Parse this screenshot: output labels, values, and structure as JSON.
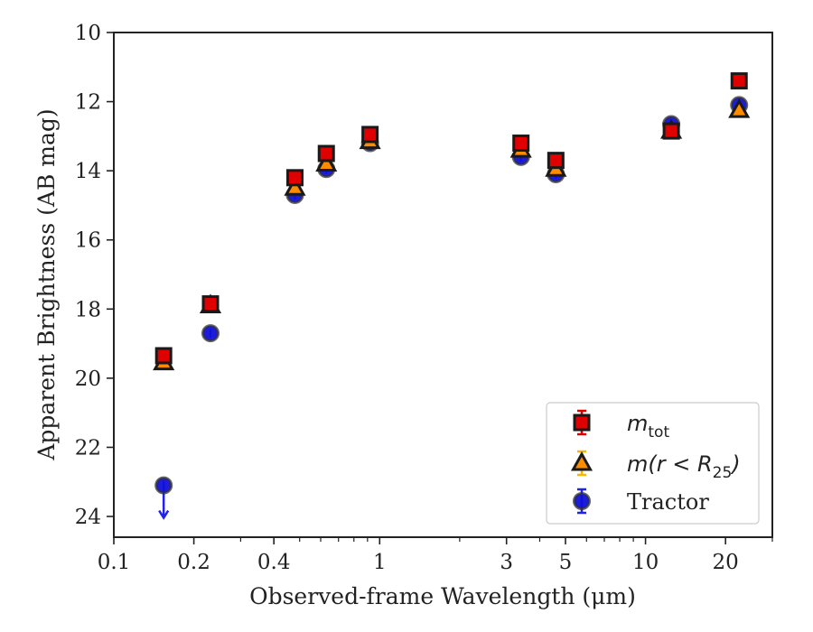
{
  "chart_data": {
    "type": "scatter",
    "xlabel": "Observed-frame Wavelength (μm)",
    "ylabel": "Apparent Brightness (AB mag)",
    "x_scale": "log",
    "xlim": [
      0.1,
      30
    ],
    "ylim": [
      24.6,
      10
    ],
    "y_inverted": true,
    "grid": false,
    "legend_position": "lower-right",
    "x_ticks": [
      {
        "value": 0.1,
        "label": "0.1"
      },
      {
        "value": 0.2,
        "label": "0.2"
      },
      {
        "value": 0.4,
        "label": "0.4"
      },
      {
        "value": 1,
        "label": "1"
      },
      {
        "value": 3,
        "label": "3"
      },
      {
        "value": 5,
        "label": "5"
      },
      {
        "value": 10,
        "label": "10"
      },
      {
        "value": 20,
        "label": "20"
      }
    ],
    "x_minor_ticks": [
      0.3,
      0.5,
      0.6,
      0.7,
      0.8,
      0.9,
      2,
      4,
      6,
      7,
      8,
      9,
      30
    ],
    "y_ticks": [
      {
        "value": 10,
        "label": "10"
      },
      {
        "value": 12,
        "label": "12"
      },
      {
        "value": 14,
        "label": "14"
      },
      {
        "value": 16,
        "label": "16"
      },
      {
        "value": 18,
        "label": "18"
      },
      {
        "value": 20,
        "label": "20"
      },
      {
        "value": 22,
        "label": "22"
      },
      {
        "value": 24,
        "label": "24"
      }
    ],
    "series": [
      {
        "name": "m_tot",
        "legend_label": {
          "base": "m",
          "sub": "tot"
        },
        "marker": "square",
        "color": "#e00000",
        "edge_color": "#1a1a1a",
        "errbar_color": "#e00000",
        "points": [
          {
            "x": 0.154,
            "y": 19.35
          },
          {
            "x": 0.231,
            "y": 17.85
          },
          {
            "x": 0.48,
            "y": 14.2
          },
          {
            "x": 0.63,
            "y": 13.5
          },
          {
            "x": 0.92,
            "y": 12.95
          },
          {
            "x": 3.4,
            "y": 13.2
          },
          {
            "x": 4.6,
            "y": 13.7
          },
          {
            "x": 12.5,
            "y": 12.85
          },
          {
            "x": 22.5,
            "y": 11.4
          }
        ]
      },
      {
        "name": "m(r < R_25)",
        "legend_label": {
          "base": "m(r < R",
          "sub": "25",
          "tail": ")"
        },
        "marker": "triangle",
        "color": "#ff8c00",
        "edge_color": "#1a1a1a",
        "errbar_color": "#f5b800",
        "points": [
          {
            "x": 0.154,
            "y": 19.55
          },
          {
            "x": 0.231,
            "y": 17.9
          },
          {
            "x": 0.48,
            "y": 14.5
          },
          {
            "x": 0.63,
            "y": 13.8
          },
          {
            "x": 0.92,
            "y": 13.15
          },
          {
            "x": 3.4,
            "y": 13.4
          },
          {
            "x": 4.6,
            "y": 13.95
          },
          {
            "x": 12.5,
            "y": 12.85
          },
          {
            "x": 22.5,
            "y": 12.25
          }
        ]
      },
      {
        "name": "Tractor",
        "legend_label": {
          "base": "Tractor"
        },
        "marker": "circle",
        "color": "#1010d8",
        "edge_color": "#333333",
        "errbar_color": "#2222ee",
        "points": [
          {
            "x": 0.154,
            "y": 23.1,
            "upper_limit": true
          },
          {
            "x": 0.231,
            "y": 18.7
          },
          {
            "x": 0.48,
            "y": 14.7
          },
          {
            "x": 0.63,
            "y": 13.95
          },
          {
            "x": 0.92,
            "y": 13.2
          },
          {
            "x": 3.4,
            "y": 13.6
          },
          {
            "x": 4.6,
            "y": 14.1
          },
          {
            "x": 12.5,
            "y": 12.65
          },
          {
            "x": 22.5,
            "y": 12.1
          }
        ]
      }
    ]
  }
}
